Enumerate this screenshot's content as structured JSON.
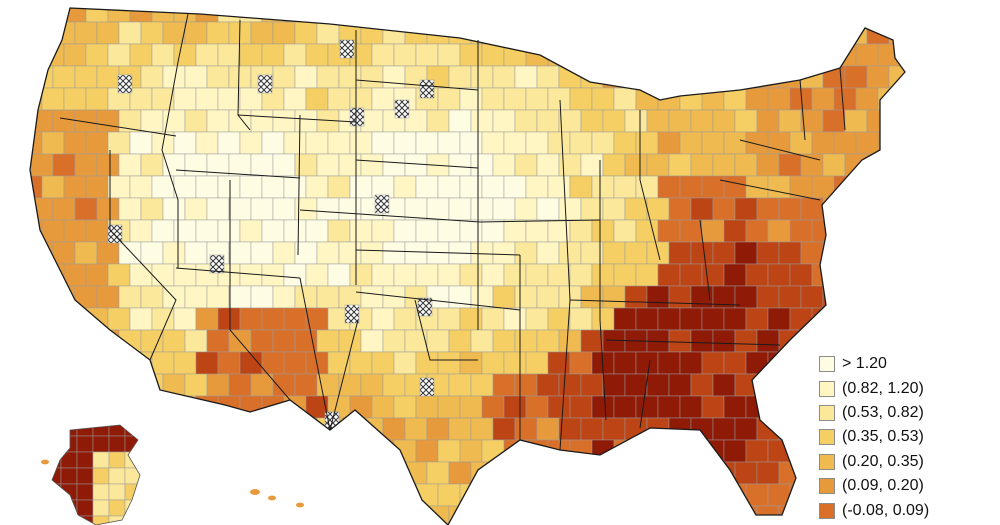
{
  "palette": {
    "gt_1_20": "#fffce4",
    "b_0_82_1_20": "#fff6c4",
    "b_0_53_0_82": "#fbe89a",
    "b_0_35_0_53": "#f5cf63",
    "b_0_20_0_35": "#efba50",
    "b_0_09_0_20": "#e79a3c",
    "b_m0_08_0_09": "#d9702a",
    "b_lowest_a": "#bd4414",
    "b_lowest_b": "#8f1a06",
    "no_data": "crosshatch",
    "state_border": "#1a1a1a",
    "region_border": "#9a9a9a"
  },
  "legend": {
    "items": [
      {
        "label": "> 1.20",
        "color": "#fffce4"
      },
      {
        "label": "(0.82, 1.20)",
        "color": "#fff6c4"
      },
      {
        "label": "(0.53, 0.82)",
        "color": "#fbe89a"
      },
      {
        "label": "(0.35, 0.53)",
        "color": "#f5cf63"
      },
      {
        "label": "(0.20, 0.35)",
        "color": "#efba50"
      },
      {
        "label": "(0.09, 0.20)",
        "color": "#e79a3c"
      },
      {
        "label": "(-0.08, 0.09)",
        "color": "#d9702a"
      }
    ]
  },
  "map": {
    "type": "choropleth",
    "subject": "United States commuting zones",
    "no_data_pattern": "crosshatch",
    "icons": [
      "alaska-shape",
      "hawaii-islands"
    ]
  }
}
